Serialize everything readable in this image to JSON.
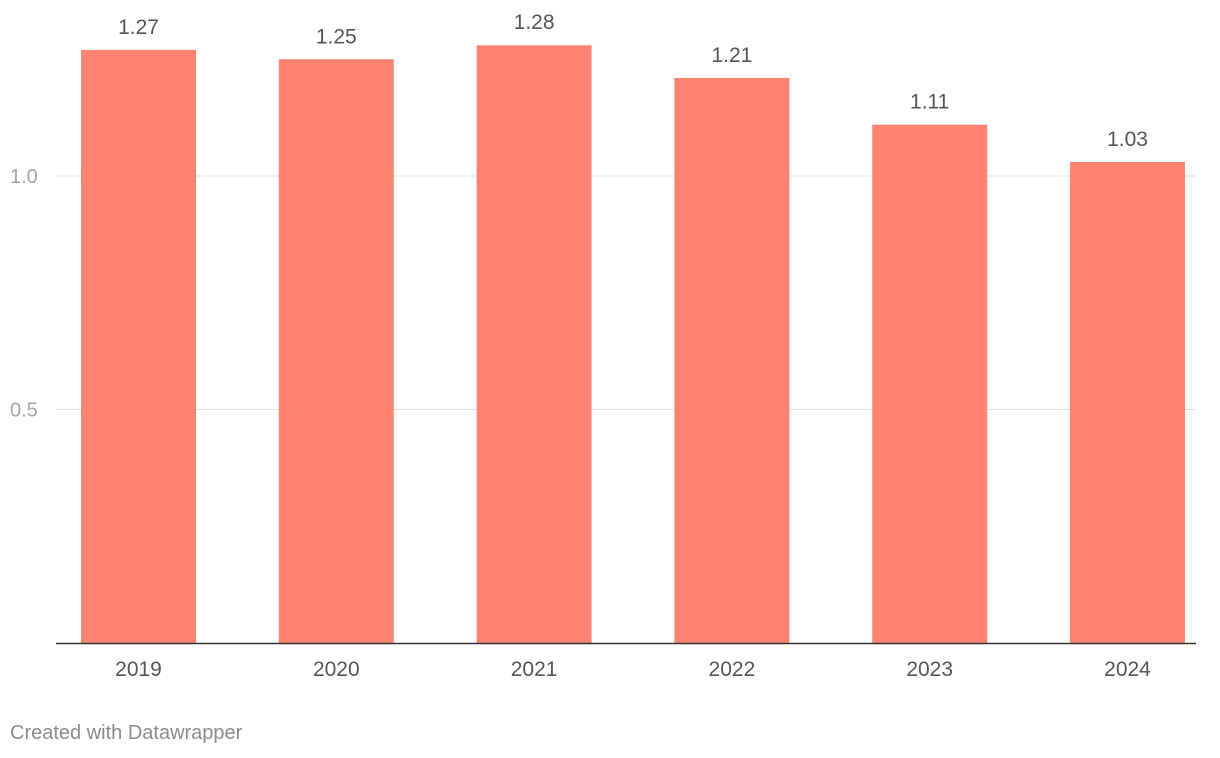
{
  "chart_data": {
    "type": "bar",
    "categories": [
      "2019",
      "2020",
      "2021",
      "2022",
      "2023",
      "2024"
    ],
    "values": [
      1.27,
      1.25,
      1.28,
      1.21,
      1.11,
      1.03
    ],
    "value_labels": [
      "1.27",
      "1.25",
      "1.28",
      "1.21",
      "1.11",
      "1.03"
    ],
    "y_ticks": [
      0.5,
      1.0
    ],
    "y_tick_labels": [
      "0.5",
      "1.0"
    ],
    "ylim": [
      0,
      1.3
    ],
    "grid": true,
    "bar_color": "#ff8370",
    "title": "",
    "xlabel": "",
    "ylabel": ""
  },
  "footer": {
    "credit": "Created with Datawrapper"
  }
}
